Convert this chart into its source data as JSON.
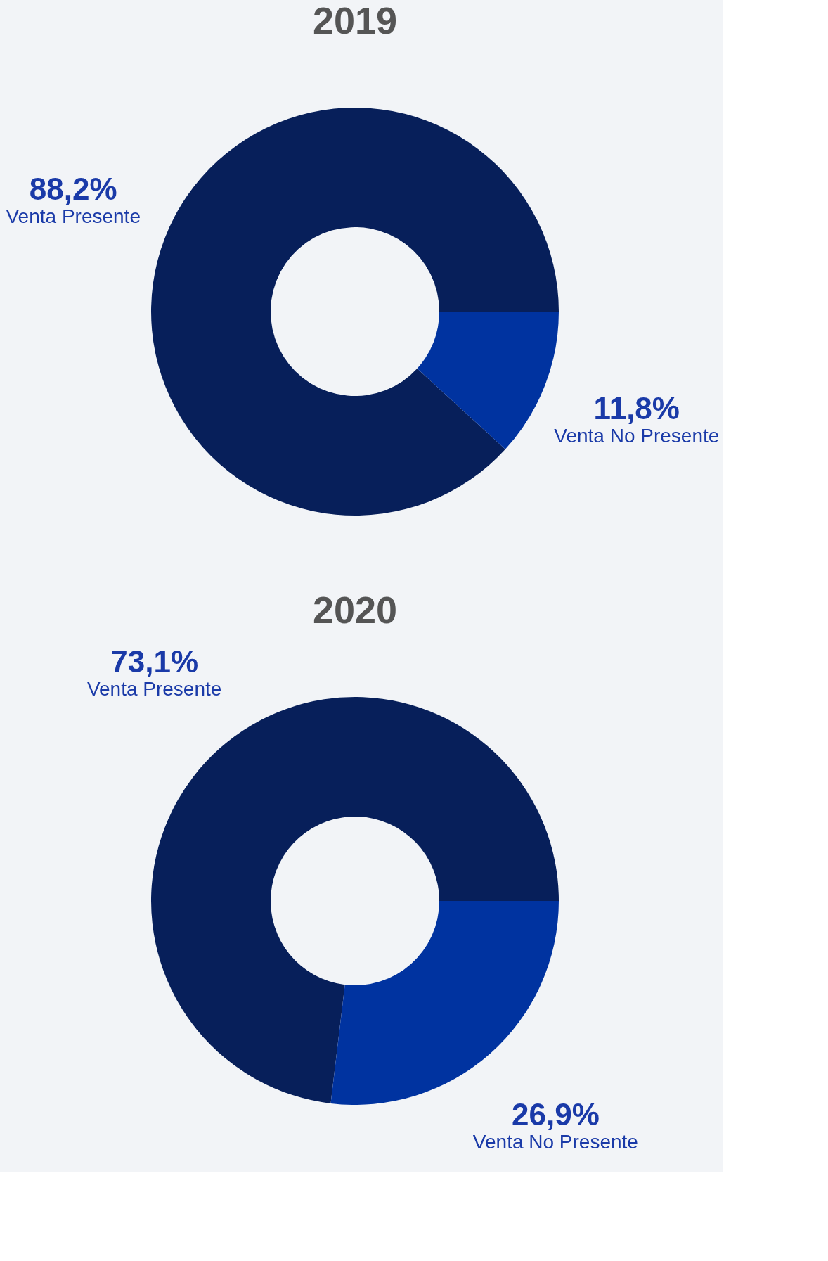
{
  "chart_data": [
    {
      "type": "donut",
      "title": "2019",
      "categories": [
        "Venta Presente",
        "Venta No Presente"
      ],
      "values": [
        88.2,
        11.8
      ],
      "colors": [
        "#071f5a",
        "#0033a0"
      ],
      "value_labels": [
        "88,2%",
        "11,8%"
      ],
      "legend": false
    },
    {
      "type": "donut",
      "title": "2020",
      "categories": [
        "Venta Presente",
        "Venta No Presente"
      ],
      "values": [
        73.1,
        26.9
      ],
      "colors": [
        "#071f5a",
        "#0033a0"
      ],
      "value_labels": [
        "73,1%",
        "26,9%"
      ],
      "legend": false
    }
  ]
}
